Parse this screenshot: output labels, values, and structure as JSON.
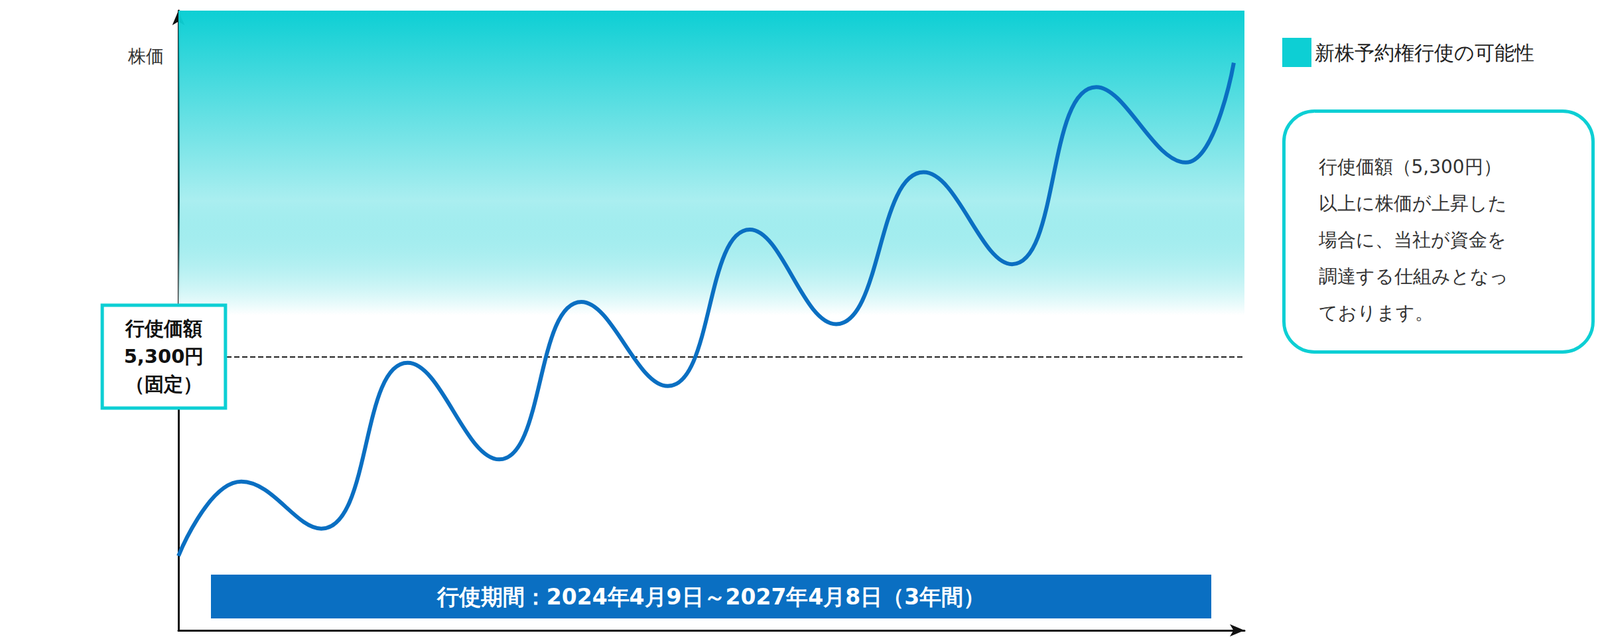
{
  "chart_data": {
    "type": "line",
    "y_label": "株価",
    "x": [
      0,
      5.9,
      13.4,
      21.5,
      30.1,
      37.8,
      45.9,
      53.6,
      61.7,
      69.9,
      78.2,
      86.1,
      94.5,
      99.0
    ],
    "values": [
      1440,
      2880,
      1970,
      5180,
      3310,
      6360,
      4730,
      7760,
      5930,
      8870,
      7090,
      10520,
      9060,
      10990
    ],
    "color": "#0a6fc2",
    "marker": "none",
    "line_style": "solid",
    "xlim": [
      0,
      100
    ],
    "ylim": [
      0,
      12000
    ],
    "tick_labels": false,
    "grid": false,
    "legend": "upper right",
    "reference_line": {
      "value": 5300,
      "labels": [
        "行使価額",
        "5,300円",
        "（固定）"
      ],
      "line_style": "dashed"
    },
    "shaded_area": {
      "name": "新株予約権行使の可能性",
      "color": "#0dcfd4"
    },
    "annotation": "行使価額（5,300円）\n以上に株価が上昇した\n場合に、当社が資金を\n調達する仕組みとなっ\nております。",
    "period_label": "行使期間：2024年4月9日～2027年4月8日（3年間）"
  }
}
